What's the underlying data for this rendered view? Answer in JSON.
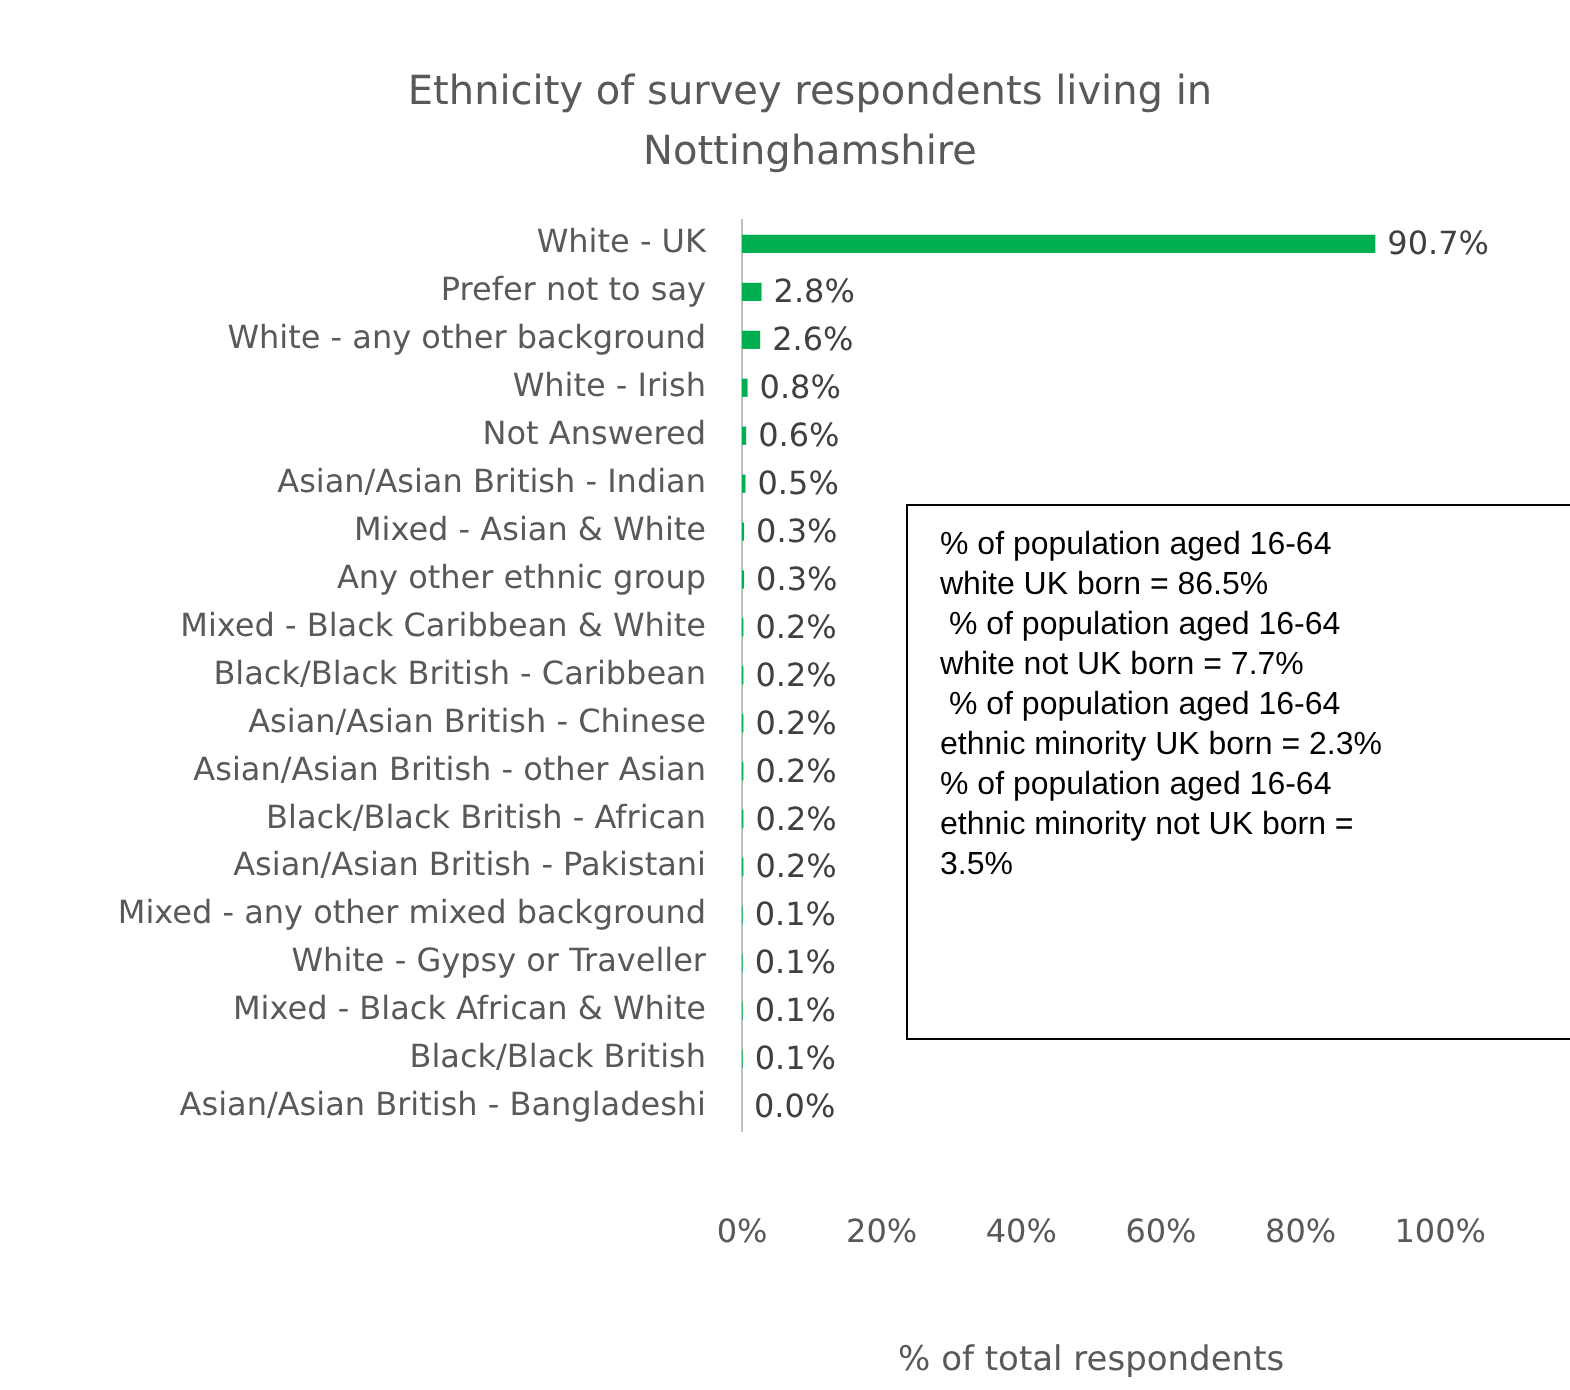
{
  "chart_data": {
    "type": "bar",
    "orientation": "horizontal",
    "title": "Ethnicity of survey respondents living in Nottinghamshire",
    "xlabel": "% of total respondents",
    "categories": [
      "White - UK",
      "Prefer not to say",
      "White - any other background",
      "White - Irish",
      "Not Answered",
      "Asian/Asian British - Indian",
      "Mixed - Asian & White",
      "Any other ethnic group",
      "Mixed - Black Caribbean & White",
      "Black/Black British - Caribbean",
      "Asian/Asian British - Chinese",
      "Asian/Asian British - other Asian",
      "Black/Black British - African",
      "Asian/Asian British - Pakistani",
      "Mixed - any other mixed background",
      "White - Gypsy or Traveller",
      "Mixed - Black African & White",
      "Black/Black British",
      "Asian/Asian British - Bangladeshi"
    ],
    "values": [
      90.7,
      2.8,
      2.6,
      0.8,
      0.6,
      0.5,
      0.3,
      0.3,
      0.2,
      0.2,
      0.2,
      0.2,
      0.2,
      0.2,
      0.1,
      0.1,
      0.1,
      0.1,
      0.0
    ],
    "value_labels": [
      "90.7%",
      "2.8%",
      "2.6%",
      "0.8%",
      "0.6%",
      "0.5%",
      "0.3%",
      "0.3%",
      "0.2%",
      "0.2%",
      "0.2%",
      "0.2%",
      "0.2%",
      "0.2%",
      "0.1%",
      "0.1%",
      "0.1%",
      "0.1%",
      "0.0%"
    ],
    "color": "#00b050",
    "xlim": [
      0,
      100
    ],
    "xticks": [
      {
        "value": 0,
        "label": "0%"
      },
      {
        "value": 20,
        "label": "20%"
      },
      {
        "value": 40,
        "label": "40%"
      },
      {
        "value": 60,
        "label": "60%"
      },
      {
        "value": 80,
        "label": "80%"
      },
      {
        "value": 100,
        "label": "100%"
      }
    ],
    "grid": false,
    "legend": false,
    "annotations": [
      "% of population aged 16-64\nwhite UK born = 86.5%\n % of population aged 16-64\nwhite not UK born = 7.7%\n % of population aged 16-64\nethnic minority UK born = 2.3%\n% of population aged 16-64\nethnic minority not UK born =\n3.5%"
    ]
  }
}
